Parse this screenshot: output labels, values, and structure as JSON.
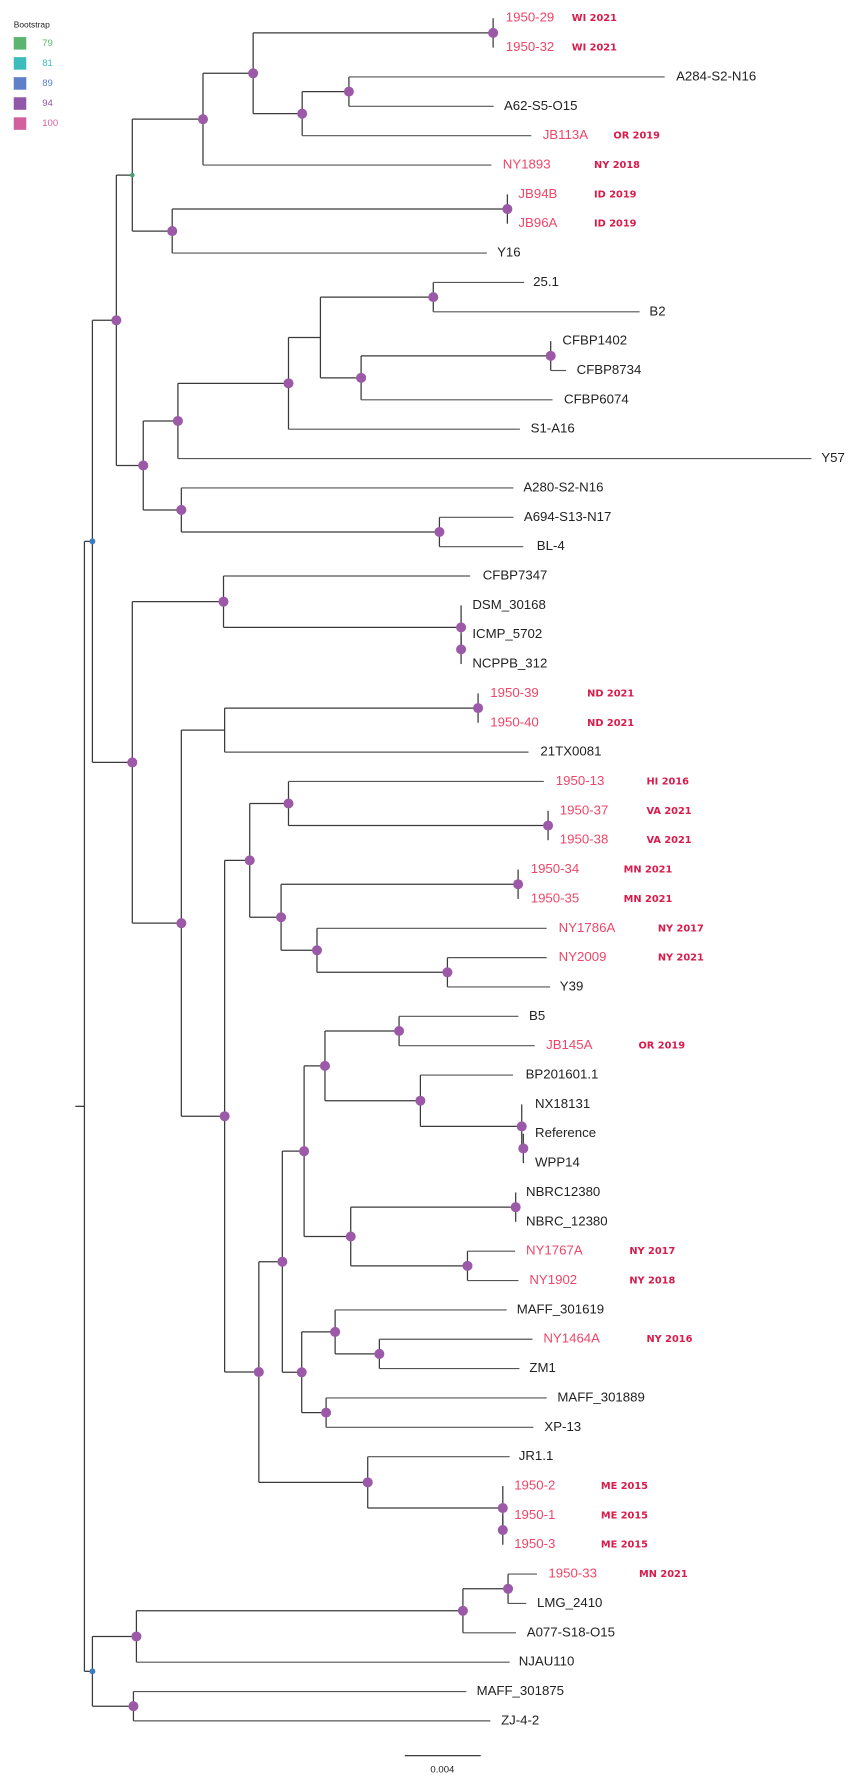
{
  "legend": {
    "title": "Bootstrap",
    "items": [
      {
        "value": "79",
        "color": "#5cb56e"
      },
      {
        "value": "81",
        "color": "#3dbcbc"
      },
      {
        "value": "89",
        "color": "#5d80c8"
      },
      {
        "value": "94",
        "color": "#9157a8"
      },
      {
        "value": "100",
        "color": "#d2609e"
      }
    ]
  },
  "colors": {
    "node": "#9b59a8",
    "highlight_label": "#ee4668",
    "tag": "#d81b4a",
    "branch": "#3a3a3a"
  },
  "leaves": [
    {
      "name": "1950-29",
      "tag": "WI 2021",
      "highlight": true
    },
    {
      "name": "1950-32",
      "tag": "WI 2021",
      "highlight": true
    },
    {
      "name": "A284-S2-N16"
    },
    {
      "name": "A62-S5-O15"
    },
    {
      "name": "JB113A",
      "tag": "OR 2019",
      "highlight": true
    },
    {
      "name": "NY1893",
      "tag": "NY 2018",
      "highlight": true
    },
    {
      "name": "JB94B",
      "tag": "ID 2019",
      "highlight": true
    },
    {
      "name": "JB96A",
      "tag": "ID 2019",
      "highlight": true
    },
    {
      "name": "Y16"
    },
    {
      "name": "25.1"
    },
    {
      "name": "B2"
    },
    {
      "name": "CFBP1402"
    },
    {
      "name": "CFBP8734"
    },
    {
      "name": "CFBP6074"
    },
    {
      "name": "S1-A16"
    },
    {
      "name": "Y57"
    },
    {
      "name": "A280-S2-N16"
    },
    {
      "name": "A694-S13-N17"
    },
    {
      "name": "BL-4"
    },
    {
      "name": "CFBP7347"
    },
    {
      "name": "DSM_30168"
    },
    {
      "name": "ICMP_5702"
    },
    {
      "name": "NCPPB_312"
    },
    {
      "name": "1950-39",
      "tag": "ND 2021",
      "highlight": true
    },
    {
      "name": "1950-40",
      "tag": "ND 2021",
      "highlight": true
    },
    {
      "name": "21TX0081"
    },
    {
      "name": "1950-13",
      "tag": "HI 2016",
      "highlight": true
    },
    {
      "name": "1950-37",
      "tag": "VA 2021",
      "highlight": true
    },
    {
      "name": "1950-38",
      "tag": "VA 2021",
      "highlight": true
    },
    {
      "name": "1950-34",
      "tag": "MN 2021",
      "highlight": true
    },
    {
      "name": "1950-35",
      "tag": "MN 2021",
      "highlight": true
    },
    {
      "name": "NY1786A",
      "tag": "NY 2017",
      "highlight": true
    },
    {
      "name": "NY2009",
      "tag": "NY 2021",
      "highlight": true
    },
    {
      "name": "Y39"
    },
    {
      "name": "B5"
    },
    {
      "name": "JB145A",
      "tag": "OR 2019",
      "highlight": true
    },
    {
      "name": "BP201601.1"
    },
    {
      "name": "NX18131"
    },
    {
      "name": "Reference"
    },
    {
      "name": "WPP14"
    },
    {
      "name": "NBRC12380"
    },
    {
      "name": "NBRC_12380"
    },
    {
      "name": "NY1767A",
      "tag": "NY 2017",
      "highlight": true
    },
    {
      "name": "NY1902",
      "tag": "NY 2018",
      "highlight": true
    },
    {
      "name": "MAFF_301619"
    },
    {
      "name": "NY1464A",
      "tag": "NY 2016",
      "highlight": true
    },
    {
      "name": "ZM1"
    },
    {
      "name": "MAFF_301889"
    },
    {
      "name": "XP-13"
    },
    {
      "name": "JR1.1"
    },
    {
      "name": "1950-2",
      "tag": "ME 2015",
      "highlight": true
    },
    {
      "name": "1950-1",
      "tag": "ME 2015",
      "highlight": true
    },
    {
      "name": "1950-3",
      "tag": "ME 2015",
      "highlight": true
    },
    {
      "name": "1950-33",
      "tag": "MN 2021",
      "highlight": true
    },
    {
      "name": "LMG_2410"
    },
    {
      "name": "A077-S18-O15"
    },
    {
      "name": "NJAU110"
    },
    {
      "name": "MAFF_301875"
    },
    {
      "name": "ZJ-4-2"
    }
  ],
  "scale_bar": {
    "label": "0.004"
  }
}
